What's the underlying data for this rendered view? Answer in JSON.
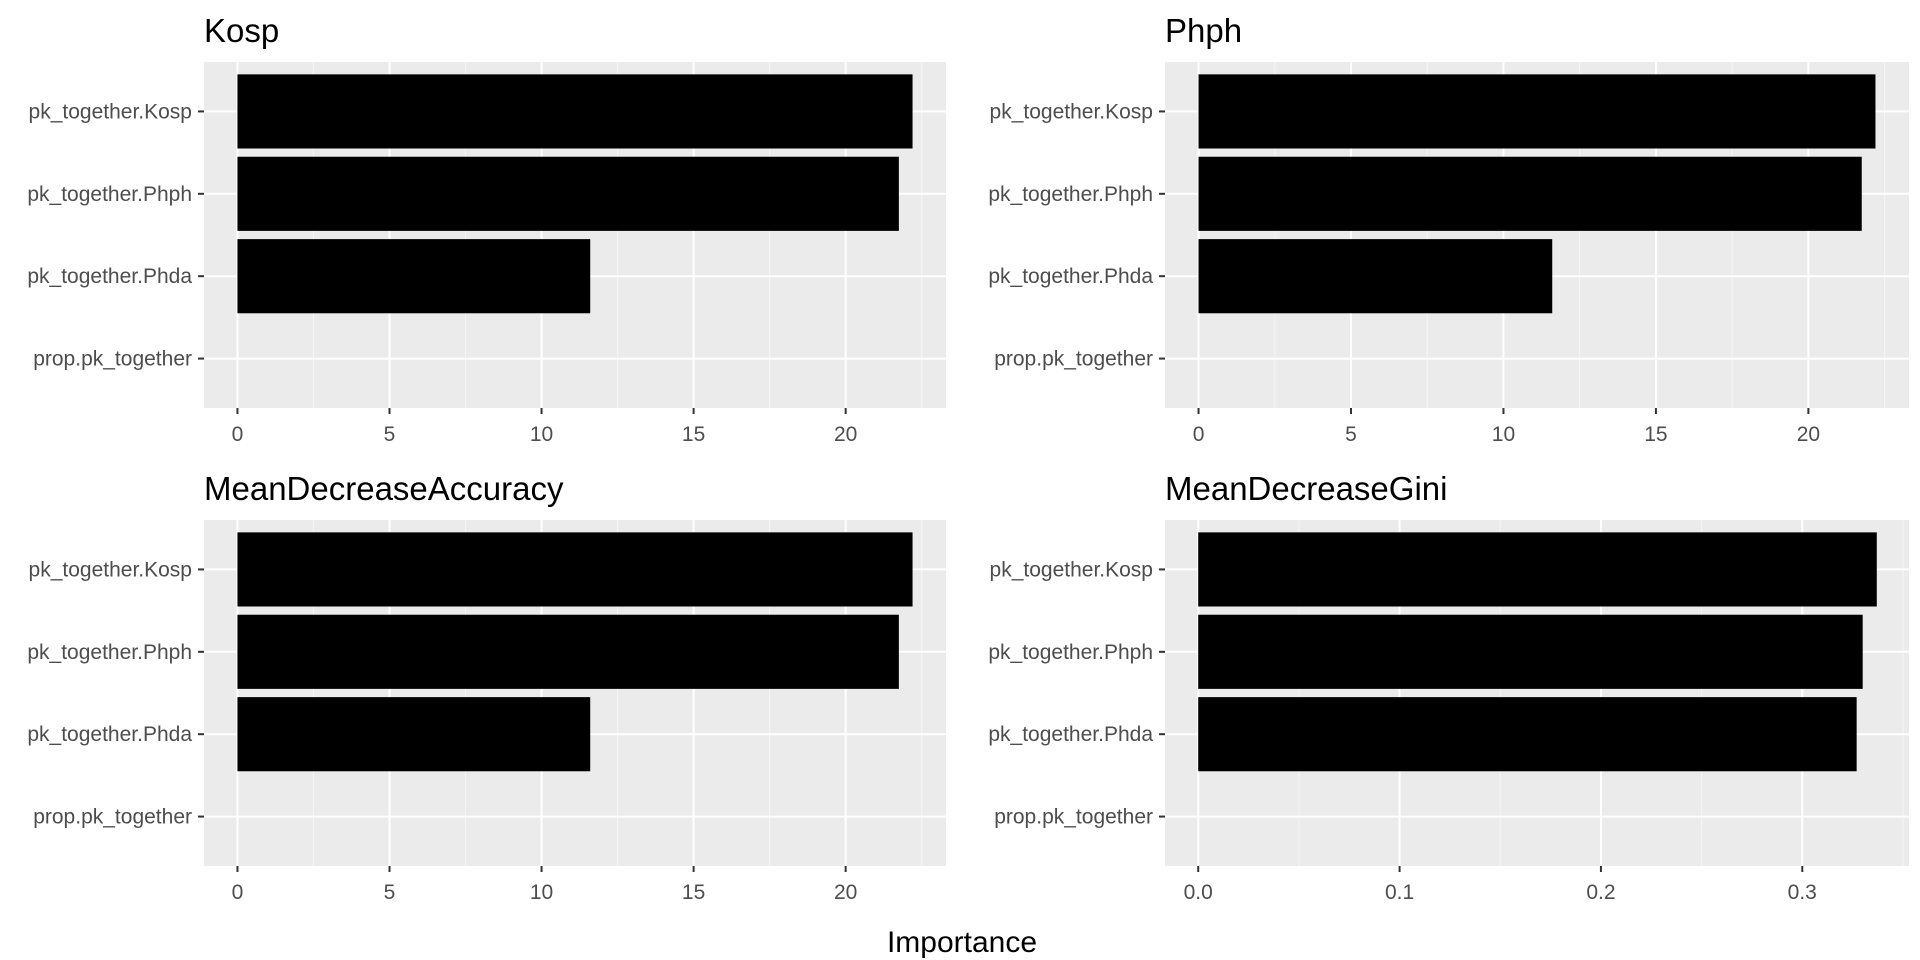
{
  "figure": {
    "xlabel": "Importance",
    "colors": {
      "panel_bg": "#ebebeb",
      "grid_major": "#ffffff",
      "grid_minor": "#f5f5f5",
      "bar": "#000000",
      "tick": "#333333",
      "tick_text": "#4d4d4d"
    }
  },
  "chart_data": [
    {
      "type": "bar",
      "orientation": "horizontal",
      "title": "Kosp",
      "categories": [
        "pk_together.Kosp",
        "pk_together.Phph",
        "pk_together.Phda",
        "prop.pk_together"
      ],
      "values": [
        22.2,
        21.75,
        11.6,
        0
      ],
      "xlim": [
        -1.1,
        23.3
      ],
      "xticks": [
        0,
        5,
        10,
        15,
        20
      ],
      "xtick_labels": [
        "0",
        "5",
        "10",
        "15",
        "20"
      ],
      "grid": true
    },
    {
      "type": "bar",
      "orientation": "horizontal",
      "title": "Phph",
      "categories": [
        "pk_together.Kosp",
        "pk_together.Phph",
        "pk_together.Phda",
        "prop.pk_together"
      ],
      "values": [
        22.2,
        21.75,
        11.6,
        0
      ],
      "xlim": [
        -1.1,
        23.3
      ],
      "xticks": [
        0,
        5,
        10,
        15,
        20
      ],
      "xtick_labels": [
        "0",
        "5",
        "10",
        "15",
        "20"
      ],
      "grid": true
    },
    {
      "type": "bar",
      "orientation": "horizontal",
      "title": "MeanDecreaseAccuracy",
      "categories": [
        "pk_together.Kosp",
        "pk_together.Phph",
        "pk_together.Phda",
        "prop.pk_together"
      ],
      "values": [
        22.2,
        21.75,
        11.6,
        0
      ],
      "xlim": [
        -1.1,
        23.3
      ],
      "xticks": [
        0,
        5,
        10,
        15,
        20
      ],
      "xtick_labels": [
        "0",
        "5",
        "10",
        "15",
        "20"
      ],
      "grid": true
    },
    {
      "type": "bar",
      "orientation": "horizontal",
      "title": "MeanDecreaseGini",
      "categories": [
        "pk_together.Kosp",
        "pk_together.Phph",
        "pk_together.Phda",
        "prop.pk_together"
      ],
      "values": [
        0.337,
        0.33,
        0.327,
        0
      ],
      "xlim": [
        -0.0165,
        0.353
      ],
      "xticks": [
        0.0,
        0.1,
        0.2,
        0.3
      ],
      "xtick_labels": [
        "0.0",
        "0.1",
        "0.2",
        "0.3"
      ],
      "grid": true
    }
  ]
}
